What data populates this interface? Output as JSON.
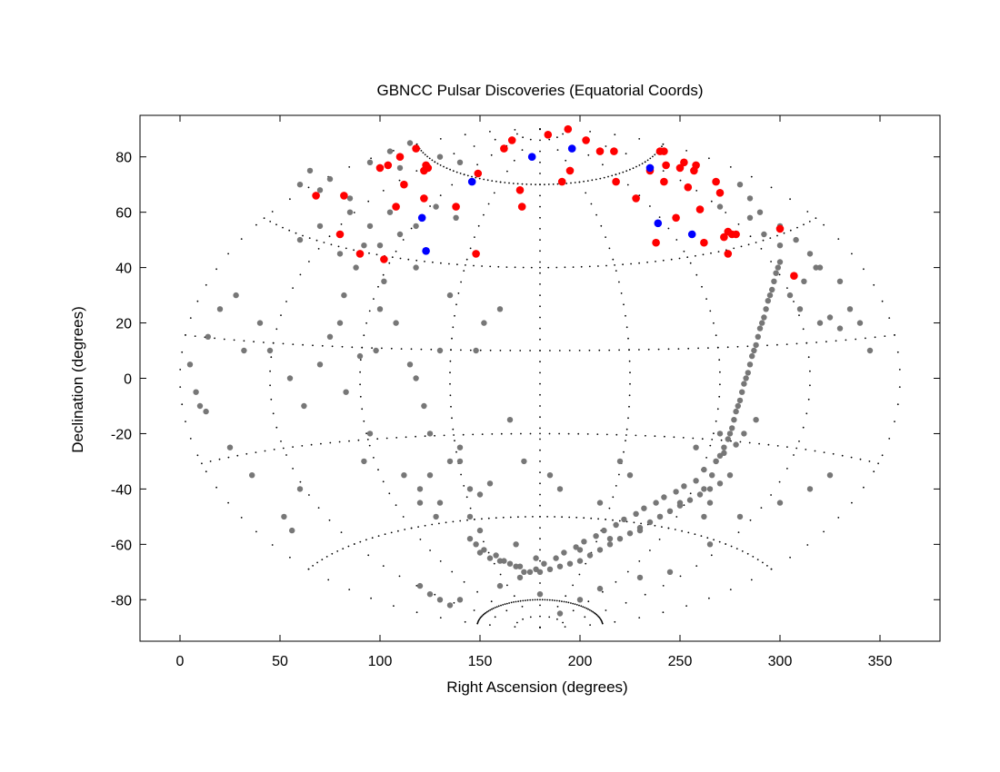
{
  "chart_data": {
    "type": "scatter",
    "title": "GBNCC Pulsar Discoveries (Equatorial Coords)",
    "xlabel": "Right Ascension (degrees)",
    "ylabel": "Declination (degrees)",
    "xlim": [
      -20,
      380
    ],
    "ylim": [
      -95,
      95
    ],
    "xticks": [
      0,
      50,
      100,
      150,
      200,
      250,
      300,
      350
    ],
    "yticks": [
      -80,
      -60,
      -40,
      -20,
      0,
      20,
      40,
      60,
      80
    ],
    "xtick_labels": [
      "0",
      "50",
      "100",
      "150",
      "200",
      "250",
      "300",
      "350"
    ],
    "ytick_labels": [
      "-80",
      "-60",
      "-40",
      "-20",
      "0",
      "20",
      "40",
      "60",
      "80"
    ],
    "grid": "dotted Aitoff-style RA/Dec graticule",
    "legend": "none",
    "series": [
      {
        "color": "#777777",
        "x": [
          10,
          13,
          25,
          36,
          52,
          56,
          60,
          83,
          90,
          92,
          95,
          112,
          120,
          128,
          150,
          168,
          178,
          200,
          215,
          230,
          240,
          250,
          262,
          266,
          268,
          270,
          272,
          274,
          275,
          276,
          277,
          278,
          279,
          280,
          281,
          282,
          283,
          284,
          285,
          286,
          287,
          288,
          289,
          290,
          291,
          292,
          293,
          294,
          295,
          296,
          297,
          298,
          299,
          300,
          305,
          310,
          312,
          318,
          320,
          325,
          330,
          335,
          340,
          345,
          5,
          8,
          14,
          20,
          28,
          32,
          40,
          45,
          55,
          62,
          70,
          75,
          80,
          82,
          88,
          98,
          100,
          102,
          108,
          115,
          118,
          122,
          125,
          130,
          135,
          140,
          145,
          148,
          152,
          160,
          165,
          172,
          185,
          190,
          210,
          220,
          225,
          258,
          262,
          265,
          270,
          150,
          155,
          160,
          165,
          170,
          175,
          180,
          185,
          190,
          195,
          200,
          205,
          210,
          215,
          220,
          225,
          230,
          235,
          240,
          245,
          250,
          255,
          260,
          265,
          270,
          275,
          145,
          148,
          152,
          158,
          162,
          168,
          172,
          178,
          182,
          188,
          192,
          198,
          202,
          208,
          212,
          218,
          222,
          228,
          232,
          238,
          242,
          248,
          252,
          258,
          262,
          268,
          272,
          278,
          282,
          288,
          120,
          125,
          130,
          135,
          140,
          160,
          170,
          180,
          190,
          200,
          210,
          230,
          245,
          265,
          280,
          300,
          315,
          325,
          60,
          65,
          70,
          75,
          85,
          95,
          105,
          110,
          115,
          130,
          140,
          60,
          70,
          80,
          92,
          105,
          118,
          128,
          138,
          280,
          285,
          290,
          300,
          308,
          315,
          320,
          330,
          120,
          125,
          130,
          135,
          140,
          145,
          150,
          155,
          85,
          95,
          100,
          110,
          118,
          270,
          285,
          292,
          300
        ],
        "y": [
          -10,
          -12,
          -25,
          -35,
          -50,
          -55,
          -40,
          -5,
          8,
          -30,
          -20,
          -35,
          -45,
          -50,
          -55,
          -60,
          -65,
          -62,
          -58,
          -55,
          -50,
          -45,
          -40,
          -35,
          -30,
          -28,
          -25,
          -22,
          -20,
          -18,
          -15,
          -12,
          -10,
          -8,
          -5,
          -2,
          0,
          2,
          5,
          8,
          10,
          12,
          15,
          18,
          20,
          22,
          25,
          28,
          30,
          32,
          35,
          38,
          40,
          42,
          30,
          25,
          35,
          40,
          20,
          22,
          18,
          25,
          20,
          10,
          5,
          -5,
          15,
          25,
          30,
          10,
          20,
          10,
          0,
          -10,
          5,
          15,
          20,
          30,
          40,
          10,
          25,
          35,
          20,
          5,
          0,
          -10,
          -20,
          10,
          30,
          -30,
          -40,
          10,
          20,
          25,
          -15,
          -30,
          -35,
          -40,
          -45,
          -30,
          -35,
          -25,
          -50,
          -45,
          -20,
          -63,
          -65,
          -66,
          -67,
          -68,
          -70,
          -70,
          -69,
          -68,
          -67,
          -66,
          -64,
          -62,
          -60,
          -58,
          -56,
          -54,
          -52,
          -50,
          -48,
          -46,
          -44,
          -42,
          -40,
          -38,
          -35,
          -58,
          -60,
          -62,
          -64,
          -66,
          -68,
          -70,
          -69,
          -67,
          -65,
          -63,
          -61,
          -59,
          -57,
          -55,
          -53,
          -51,
          -49,
          -47,
          -45,
          -43,
          -41,
          -39,
          -37,
          -33,
          -30,
          -27,
          -24,
          -20,
          -15,
          -75,
          -78,
          -80,
          -82,
          -80,
          -75,
          -72,
          -78,
          -85,
          -80,
          -76,
          -72,
          -70,
          -60,
          -50,
          -45,
          -40,
          -35,
          70,
          75,
          68,
          72,
          65,
          78,
          82,
          76,
          85,
          80,
          78,
          50,
          55,
          45,
          48,
          60,
          55,
          62,
          58,
          70,
          65,
          60,
          55,
          50,
          45,
          40,
          35,
          -40,
          -35,
          -45,
          -30,
          -25,
          -50,
          -42,
          -38,
          60,
          55,
          48,
          52,
          40,
          62,
          58,
          52,
          48
        ]
      },
      {
        "color": "#ff0000",
        "x": [
          68,
          82,
          80,
          90,
          102,
          100,
          104,
          110,
          108,
          112,
          118,
          122,
          123,
          124,
          122,
          138,
          148,
          149,
          162,
          166,
          171,
          170,
          184,
          194,
          195,
          191,
          203,
          210,
          218,
          217,
          228,
          235,
          238,
          240,
          242,
          243,
          242,
          248,
          250,
          252,
          254,
          257,
          258,
          260,
          262,
          268,
          270,
          272,
          274,
          276,
          278,
          274,
          300,
          307
        ],
        "y": [
          66,
          66,
          52,
          45,
          43,
          76,
          77,
          80,
          62,
          70,
          83,
          75,
          77,
          76,
          65,
          62,
          45,
          74,
          83,
          86,
          62,
          68,
          88,
          90,
          75,
          71,
          86,
          82,
          71,
          82,
          65,
          75,
          49,
          82,
          82,
          77,
          71,
          58,
          76,
          78,
          69,
          75,
          77,
          61,
          49,
          71,
          67,
          51,
          53,
          52,
          52,
          45,
          54,
          37
        ]
      },
      {
        "color": "#0000ff",
        "x": [
          146,
          121,
          123,
          176,
          196,
          235,
          239,
          256
        ],
        "y": [
          71,
          58,
          46,
          80,
          83,
          76,
          56,
          52
        ]
      }
    ]
  }
}
